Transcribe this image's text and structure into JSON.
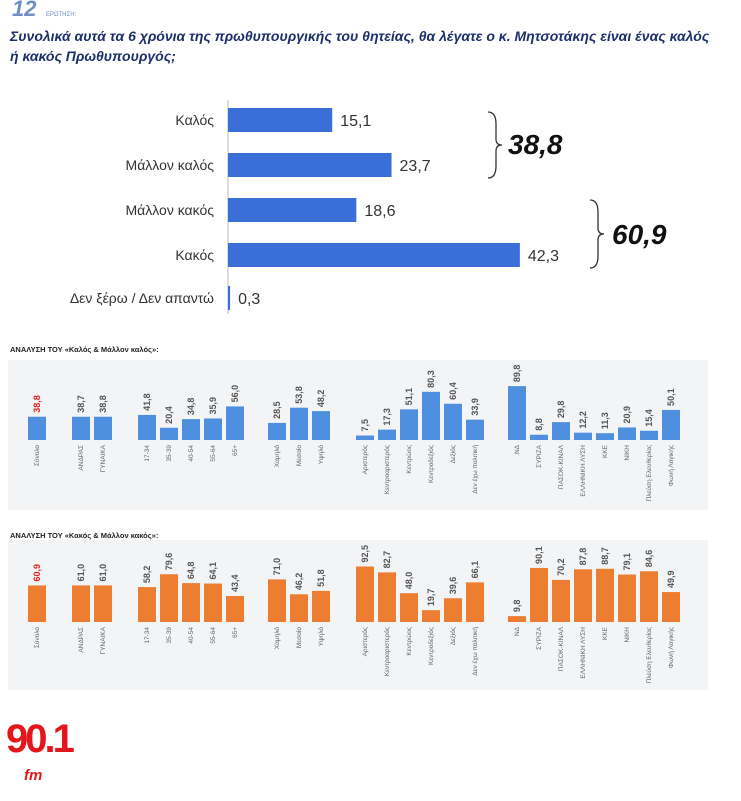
{
  "header": {
    "number": "12",
    "label": "ΕΡΩΤΗΣΗ:"
  },
  "logo": {
    "number": "90.1",
    "suffix": "fm"
  },
  "chart_data": [
    {
      "type": "hbar",
      "title": "Συνολικά αυτά τα 6 χρόνια της πρωθυπουργικής του θητείας, θα λέγατε ο κ. Μητσοτάκης είναι ένας καλός ή κακός Πρωθυπουργός;",
      "categories": [
        "Καλός",
        "Μάλλον καλός",
        "Μάλλον κακός",
        "Κακός",
        "Δεν ξέρω / Δεν απαντώ"
      ],
      "values": [
        15.1,
        23.7,
        18.6,
        42.3,
        0.3
      ],
      "value_labels": [
        "15,1",
        "23,7",
        "18,6",
        "42,3",
        "0,3"
      ],
      "annotations": [
        "38,8",
        "60,9"
      ],
      "color": "#3a6fd8"
    },
    {
      "type": "column",
      "subtitle": "ΑΝΑΛΥΣΗ ΤΟΥ «Καλός & Μάλλον καλός»:",
      "color": "#4f8fe0",
      "highlight_color": "#e02020",
      "groups": [
        {
          "categories": [
            "Σύνολο"
          ],
          "values": [
            38.8
          ],
          "value_labels": [
            "38,8"
          ]
        },
        {
          "categories": [
            "ΑΝΔΡΑΣ",
            "ΓΥΝΑΙΚΑ"
          ],
          "values": [
            38.7,
            38.8
          ],
          "value_labels": [
            "38,7",
            "38,8"
          ]
        },
        {
          "categories": [
            "17-34",
            "35-39",
            "40-54",
            "55-64",
            "65+"
          ],
          "values": [
            41.8,
            20.4,
            34.8,
            35.9,
            56.0
          ],
          "value_labels": [
            "41,8",
            "20,4",
            "34,8",
            "35,9",
            "56,0"
          ]
        },
        {
          "categories": [
            "Χαμηλό",
            "Μεσαίο",
            "Υψηλό"
          ],
          "values": [
            28.5,
            53.8,
            48.2
          ],
          "value_labels": [
            "28,5",
            "53,8",
            "48,2"
          ]
        },
        {
          "categories": [
            "Αριστερός",
            "Κεντροαριστερός",
            "Κεντρώος",
            "Κεντροδεξιός",
            "Δεξιός",
            "Δεν έχω πολιτική"
          ],
          "values": [
            7.5,
            17.3,
            51.1,
            80.3,
            60.4,
            33.9
          ],
          "value_labels": [
            "7,5",
            "17,3",
            "51,1",
            "80,3",
            "60,4",
            "33,9"
          ]
        },
        {
          "categories": [
            "ΝΔ",
            "ΣΥΡΙΖΑ",
            "ΠΑΣΟΚ-ΚΙΝΑΛ",
            "ΕΛΛΗΝΙΚΗ ΛΥΣΗ",
            "ΚΚΕ",
            "ΝΙΚΗ",
            "Πλεύση Ελευθερίας",
            "Φωνή Λογικής"
          ],
          "values": [
            89.8,
            8.8,
            29.8,
            12.2,
            11.3,
            20.9,
            15.4,
            50.1
          ],
          "value_labels": [
            "89,8",
            "8,8",
            "29,8",
            "12,2",
            "11,3",
            "20,9",
            "15,4",
            "50,1"
          ]
        }
      ]
    },
    {
      "type": "column",
      "subtitle": "ΑΝΑΛΥΣΗ ΤΟΥ «Κακός & Μάλλον κακός»:",
      "color": "#ed7d31",
      "highlight_color": "#e02020",
      "groups": [
        {
          "categories": [
            "Σύνολο"
          ],
          "values": [
            60.9
          ],
          "value_labels": [
            "60,9"
          ]
        },
        {
          "categories": [
            "ΑΝΔΡΑΣ",
            "ΓΥΝΑΙΚΑ"
          ],
          "values": [
            61.0,
            61.0
          ],
          "value_labels": [
            "61,0",
            "61,0"
          ]
        },
        {
          "categories": [
            "17-34",
            "35-39",
            "40-54",
            "55-64",
            "65+"
          ],
          "values": [
            58.2,
            79.6,
            64.8,
            64.1,
            43.4
          ],
          "value_labels": [
            "58,2",
            "79,6",
            "64,8",
            "64,1",
            "43,4"
          ]
        },
        {
          "categories": [
            "Χαμηλό",
            "Μεσαίο",
            "Υψηλό"
          ],
          "values": [
            71.0,
            46.2,
            51.8
          ],
          "value_labels": [
            "71,0",
            "46,2",
            "51,8"
          ]
        },
        {
          "categories": [
            "Αριστερός",
            "Κεντροαριστερός",
            "Κεντρώος",
            "Κεντροδεξιός",
            "Δεξιός",
            "Δεν έχω πολιτική"
          ],
          "values": [
            92.5,
            82.7,
            48.0,
            19.7,
            39.6,
            66.1
          ],
          "value_labels": [
            "92,5",
            "82,7",
            "48,0",
            "19,7",
            "39,6",
            "66,1"
          ]
        },
        {
          "categories": [
            "ΝΔ",
            "ΣΥΡΙΖΑ",
            "ΠΑΣΟΚ-ΚΙΝΑΛ",
            "ΕΛΛΗΝΙΚΗ ΛΥΣΗ",
            "ΚΚΕ",
            "ΝΙΚΗ",
            "Πλεύση Ελευθερίας",
            "Φωνή Λογικής"
          ],
          "values": [
            9.8,
            90.1,
            70.2,
            87.8,
            88.7,
            79.1,
            84.6,
            49.9
          ],
          "value_labels": [
            "9,8",
            "90,1",
            "70,2",
            "87,8",
            "88,7",
            "79,1",
            "84,6",
            "49,9"
          ]
        }
      ]
    }
  ]
}
